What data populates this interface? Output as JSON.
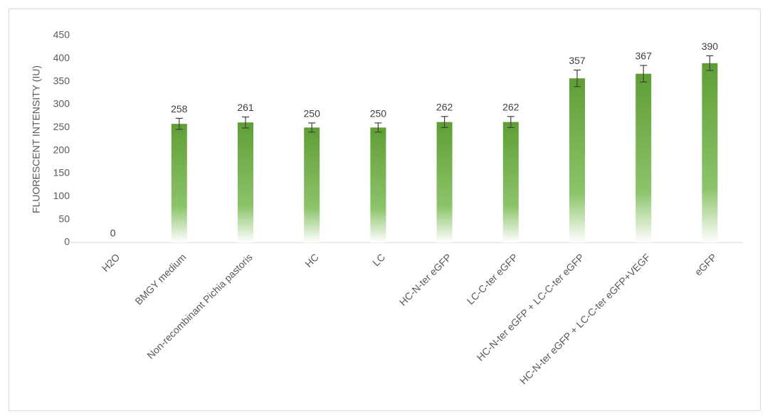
{
  "chart_data": {
    "type": "bar",
    "y_label": "FLUORESCENT INTENSITY (IU)",
    "categories": [
      "H2O",
      "BMGY medium",
      "Non-recombinant Pichia pastoris",
      "HC",
      "LC",
      "HC-N-ter eGFP",
      "LC-C-ter eGFP",
      "HC-N-ter eGFP + LC-C-ter eGFP",
      "HC-N-ter eGFP + LC-C-ter eGFP+VEGF",
      "eGFP"
    ],
    "values": [
      0,
      258,
      261,
      250,
      250,
      262,
      262,
      357,
      367,
      390
    ],
    "errors": [
      0,
      12,
      12,
      10,
      10,
      12,
      12,
      18,
      18,
      16
    ],
    "color": "#70ad47",
    "ylim": [
      0,
      450
    ],
    "yticks": [
      0,
      50,
      100,
      150,
      200,
      250,
      300,
      350,
      400,
      450
    ],
    "grid": false
  }
}
